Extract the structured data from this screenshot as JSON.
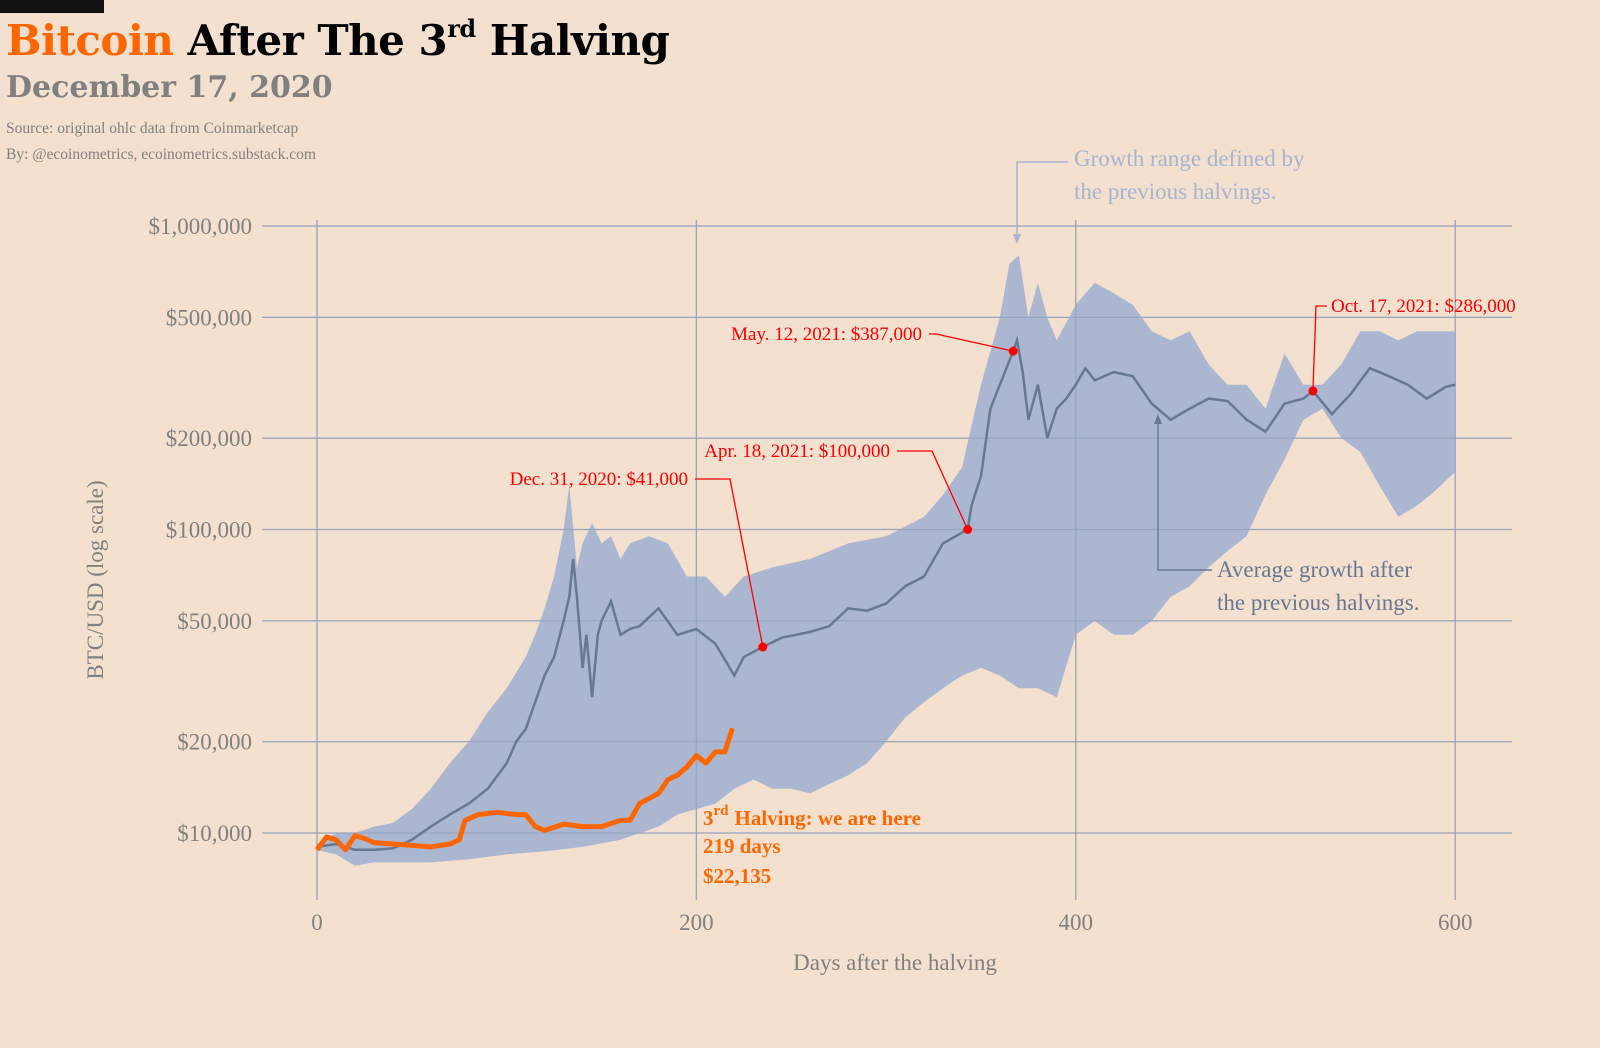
{
  "header": {
    "title_accent": "Bitcoin",
    "title_main": "After The 3",
    "title_sup": "rd",
    "title_end": "Halving",
    "date": "December 17, 2020",
    "source": "Source: original ohlc data from Coinmarketcap",
    "byline": "By: @ecoinometrics, ecoinometrics.substack.com"
  },
  "colors": {
    "accent": "#ff6600",
    "band": "#a6b4d0",
    "average": "#677891",
    "annotation": "#ff0000",
    "background": "#f3e0cf"
  },
  "chart_data": {
    "type": "area",
    "xlabel": "Days after the halving",
    "ylabel": "BTC/USD (log scale)",
    "xlim": [
      -15,
      630
    ],
    "ylim": [
      7000,
      1000000
    ],
    "yscale": "log",
    "grid": true,
    "x_ticks": [
      0,
      200,
      400,
      600
    ],
    "x_tick_labels": [
      "0",
      "200",
      "400",
      "600"
    ],
    "y_ticks": [
      10000,
      20000,
      50000,
      100000,
      200000,
      500000,
      1000000
    ],
    "y_tick_labels": [
      "$10,000",
      "$20,000",
      "$50,000",
      "$100,000",
      "$200,000",
      "$500,000",
      "$1,000,000"
    ],
    "range_upper": [
      [
        0,
        9200
      ],
      [
        10,
        10000
      ],
      [
        20,
        10000
      ],
      [
        30,
        10500
      ],
      [
        40,
        10800
      ],
      [
        50,
        12000
      ],
      [
        60,
        14000
      ],
      [
        70,
        17000
      ],
      [
        80,
        20000
      ],
      [
        90,
        25000
      ],
      [
        100,
        30000
      ],
      [
        110,
        38000
      ],
      [
        115,
        45000
      ],
      [
        120,
        55000
      ],
      [
        125,
        70000
      ],
      [
        130,
        100000
      ],
      [
        133,
        140000
      ],
      [
        137,
        75000
      ],
      [
        140,
        90000
      ],
      [
        145,
        105000
      ],
      [
        150,
        90000
      ],
      [
        155,
        95000
      ],
      [
        160,
        80000
      ],
      [
        165,
        90000
      ],
      [
        175,
        95000
      ],
      [
        185,
        90000
      ],
      [
        195,
        70000
      ],
      [
        205,
        70000
      ],
      [
        215,
        60000
      ],
      [
        225,
        70000
      ],
      [
        240,
        75000
      ],
      [
        260,
        80000
      ],
      [
        280,
        90000
      ],
      [
        300,
        95000
      ],
      [
        320,
        110000
      ],
      [
        330,
        130000
      ],
      [
        340,
        160000
      ],
      [
        350,
        300000
      ],
      [
        360,
        500000
      ],
      [
        365,
        750000
      ],
      [
        370,
        800000
      ],
      [
        375,
        500000
      ],
      [
        380,
        650000
      ],
      [
        385,
        500000
      ],
      [
        390,
        420000
      ],
      [
        400,
        550000
      ],
      [
        410,
        650000
      ],
      [
        420,
        600000
      ],
      [
        430,
        550000
      ],
      [
        440,
        450000
      ],
      [
        450,
        420000
      ],
      [
        460,
        450000
      ],
      [
        470,
        350000
      ],
      [
        480,
        300000
      ],
      [
        490,
        300000
      ],
      [
        500,
        250000
      ],
      [
        510,
        380000
      ],
      [
        520,
        300000
      ],
      [
        530,
        300000
      ],
      [
        540,
        350000
      ],
      [
        550,
        450000
      ],
      [
        560,
        450000
      ],
      [
        570,
        420000
      ],
      [
        580,
        450000
      ],
      [
        590,
        450000
      ],
      [
        600,
        450000
      ]
    ],
    "range_lower": [
      [
        0,
        8800
      ],
      [
        10,
        8500
      ],
      [
        20,
        7800
      ],
      [
        30,
        8000
      ],
      [
        40,
        8000
      ],
      [
        60,
        8000
      ],
      [
        80,
        8200
      ],
      [
        100,
        8500
      ],
      [
        120,
        8700
      ],
      [
        140,
        9000
      ],
      [
        160,
        9500
      ],
      [
        180,
        10500
      ],
      [
        190,
        11500
      ],
      [
        200,
        12000
      ],
      [
        210,
        12500
      ],
      [
        220,
        14000
      ],
      [
        230,
        15000
      ],
      [
        240,
        14000
      ],
      [
        250,
        14000
      ],
      [
        260,
        13500
      ],
      [
        270,
        14500
      ],
      [
        280,
        15500
      ],
      [
        290,
        17000
      ],
      [
        300,
        20000
      ],
      [
        310,
        24000
      ],
      [
        320,
        27000
      ],
      [
        330,
        30000
      ],
      [
        340,
        33000
      ],
      [
        350,
        35000
      ],
      [
        360,
        33000
      ],
      [
        370,
        30000
      ],
      [
        380,
        30000
      ],
      [
        390,
        28000
      ],
      [
        400,
        45000
      ],
      [
        410,
        50000
      ],
      [
        420,
        45000
      ],
      [
        430,
        45000
      ],
      [
        440,
        50000
      ],
      [
        450,
        60000
      ],
      [
        460,
        65000
      ],
      [
        470,
        75000
      ],
      [
        480,
        85000
      ],
      [
        490,
        95000
      ],
      [
        500,
        130000
      ],
      [
        510,
        170000
      ],
      [
        520,
        230000
      ],
      [
        530,
        250000
      ],
      [
        540,
        200000
      ],
      [
        550,
        180000
      ],
      [
        560,
        140000
      ],
      [
        570,
        110000
      ],
      [
        580,
        120000
      ],
      [
        590,
        135000
      ],
      [
        600,
        155000
      ]
    ],
    "average": [
      [
        0,
        9000
      ],
      [
        10,
        9200
      ],
      [
        20,
        8800
      ],
      [
        30,
        8800
      ],
      [
        40,
        8900
      ],
      [
        50,
        9500
      ],
      [
        60,
        10500
      ],
      [
        70,
        11500
      ],
      [
        80,
        12500
      ],
      [
        90,
        14000
      ],
      [
        100,
        17000
      ],
      [
        105,
        20000
      ],
      [
        110,
        22000
      ],
      [
        115,
        27000
      ],
      [
        120,
        33000
      ],
      [
        125,
        38000
      ],
      [
        130,
        50000
      ],
      [
        133,
        60000
      ],
      [
        135,
        80000
      ],
      [
        137,
        60000
      ],
      [
        140,
        35000
      ],
      [
        142,
        45000
      ],
      [
        145,
        28000
      ],
      [
        148,
        45000
      ],
      [
        150,
        50000
      ],
      [
        155,
        58000
      ],
      [
        160,
        45000
      ],
      [
        165,
        47000
      ],
      [
        170,
        48000
      ],
      [
        180,
        55000
      ],
      [
        190,
        45000
      ],
      [
        200,
        47000
      ],
      [
        210,
        42000
      ],
      [
        220,
        33000
      ],
      [
        225,
        38000
      ],
      [
        235,
        41000
      ],
      [
        245,
        44000
      ],
      [
        260,
        46000
      ],
      [
        270,
        48000
      ],
      [
        280,
        55000
      ],
      [
        290,
        54000
      ],
      [
        300,
        57000
      ],
      [
        310,
        65000
      ],
      [
        320,
        70000
      ],
      [
        330,
        90000
      ],
      [
        343,
        100000
      ],
      [
        345,
        120000
      ],
      [
        350,
        150000
      ],
      [
        355,
        250000
      ],
      [
        360,
        300000
      ],
      [
        367,
        387000
      ],
      [
        369,
        420000
      ],
      [
        372,
        330000
      ],
      [
        375,
        230000
      ],
      [
        380,
        300000
      ],
      [
        385,
        200000
      ],
      [
        390,
        250000
      ],
      [
        395,
        270000
      ],
      [
        400,
        300000
      ],
      [
        405,
        340000
      ],
      [
        410,
        310000
      ],
      [
        420,
        330000
      ],
      [
        430,
        320000
      ],
      [
        440,
        260000
      ],
      [
        450,
        230000
      ],
      [
        460,
        250000
      ],
      [
        470,
        270000
      ],
      [
        480,
        265000
      ],
      [
        490,
        230000
      ],
      [
        500,
        210000
      ],
      [
        510,
        260000
      ],
      [
        520,
        270000
      ],
      [
        525,
        286000
      ],
      [
        535,
        240000
      ],
      [
        545,
        280000
      ],
      [
        555,
        340000
      ],
      [
        565,
        320000
      ],
      [
        575,
        300000
      ],
      [
        585,
        270000
      ],
      [
        595,
        295000
      ],
      [
        600,
        300000
      ]
    ],
    "current": [
      [
        0,
        8800
      ],
      [
        5,
        9700
      ],
      [
        10,
        9500
      ],
      [
        15,
        8800
      ],
      [
        20,
        9800
      ],
      [
        25,
        9600
      ],
      [
        30,
        9300
      ],
      [
        40,
        9200
      ],
      [
        50,
        9100
      ],
      [
        60,
        9000
      ],
      [
        70,
        9200
      ],
      [
        75,
        9500
      ],
      [
        78,
        11000
      ],
      [
        85,
        11500
      ],
      [
        95,
        11700
      ],
      [
        105,
        11500
      ],
      [
        110,
        11500
      ],
      [
        115,
        10500
      ],
      [
        120,
        10200
      ],
      [
        130,
        10700
      ],
      [
        140,
        10500
      ],
      [
        150,
        10500
      ],
      [
        160,
        11000
      ],
      [
        165,
        11000
      ],
      [
        170,
        12500
      ],
      [
        180,
        13500
      ],
      [
        185,
        15000
      ],
      [
        190,
        15500
      ],
      [
        195,
        16500
      ],
      [
        200,
        18000
      ],
      [
        205,
        17000
      ],
      [
        210,
        18500
      ],
      [
        215,
        18500
      ],
      [
        219,
        22135
      ]
    ],
    "annotations": [
      {
        "label": "Dec. 31, 2020: $41,000",
        "day": 235,
        "value": 41000
      },
      {
        "label": "Apr. 18, 2021: $100,000",
        "day": 343,
        "value": 100000
      },
      {
        "label": "May. 12, 2021: $387,000",
        "day": 367,
        "value": 387000
      },
      {
        "label": "Oct. 17, 2021: $286,000",
        "day": 525,
        "value": 286000
      }
    ],
    "range_note": [
      "Growth range defined by",
      "the previous halvings."
    ],
    "average_note": [
      "Average growth after",
      "the previous halvings."
    ],
    "current_note": {
      "line1_num": "3",
      "line1_sup": "rd",
      "line1_text": "Halving: we are here",
      "line2": "219 days",
      "line3": "$22,135"
    }
  }
}
